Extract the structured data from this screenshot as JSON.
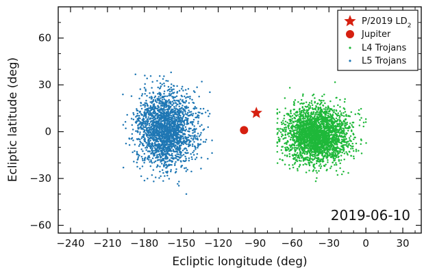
{
  "chart_data": {
    "type": "scatter",
    "title": "",
    "xlabel": "Ecliptic longitude (deg)",
    "ylabel": "Ecliptic latitude (deg)",
    "xlim": [
      -250,
      45
    ],
    "ylim": [
      -65,
      80
    ],
    "xticks": [
      -240,
      -210,
      -180,
      -150,
      -120,
      -90,
      -60,
      -30,
      0,
      30
    ],
    "yticks": [
      -60,
      -30,
      0,
      30,
      60
    ],
    "grid": false,
    "legend_position": "top-right",
    "annotation": "2019-06-10",
    "series": [
      {
        "name": "P/2019 LD",
        "name_subscript": "2",
        "marker": "star",
        "color": "#d62010",
        "points": [
          {
            "x": -89,
            "y": 12
          }
        ]
      },
      {
        "name": "Jupiter",
        "marker": "circle",
        "color": "#d62010",
        "points": [
          {
            "x": -99,
            "y": 1
          }
        ]
      },
      {
        "name": "L4 Trojans",
        "marker": "dot",
        "color": "#1fb83a",
        "cluster": {
          "center": [
            -40,
            -2
          ],
          "spread": [
            13,
            9
          ],
          "x_range": [
            -72,
            8
          ],
          "y_range": [
            -37,
            32
          ],
          "count": 2600
        }
      },
      {
        "name": "L5 Trojans",
        "marker": "dot",
        "color": "#1f77b4",
        "cluster": {
          "center": [
            -162,
            2
          ],
          "spread": [
            12,
            12
          ],
          "x_range": [
            -205,
            -125
          ],
          "y_range": [
            -40,
            38
          ],
          "count": 2100
        }
      }
    ]
  }
}
